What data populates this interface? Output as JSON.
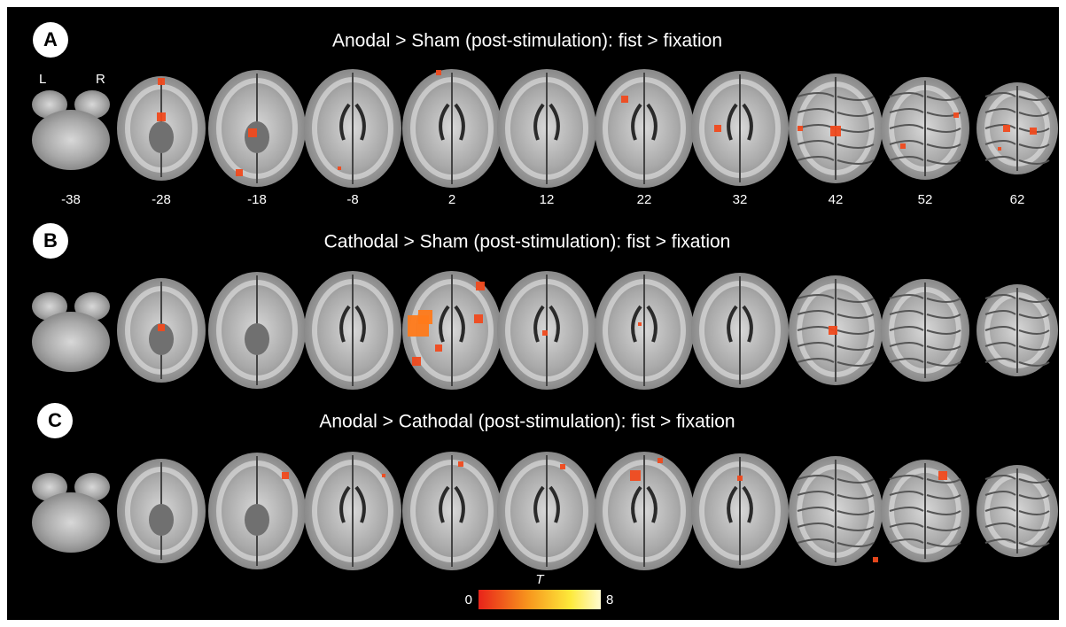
{
  "panels": [
    {
      "label": "A",
      "title": "Anodal > Sham (post-stimulation): fist > fixation"
    },
    {
      "label": "B",
      "title": "Cathodal > Sham (post-stimulation): fist > fixation"
    },
    {
      "label": "C",
      "title": "Anodal > Cathodal (post-stimulation): fist > fixation"
    }
  ],
  "orientation": {
    "left": "L",
    "right": "R"
  },
  "slices": [
    -38,
    -28,
    -18,
    -8,
    2,
    12,
    22,
    32,
    42,
    52,
    62
  ],
  "colorbar": {
    "title": "T",
    "min": 0,
    "max": 8
  }
}
